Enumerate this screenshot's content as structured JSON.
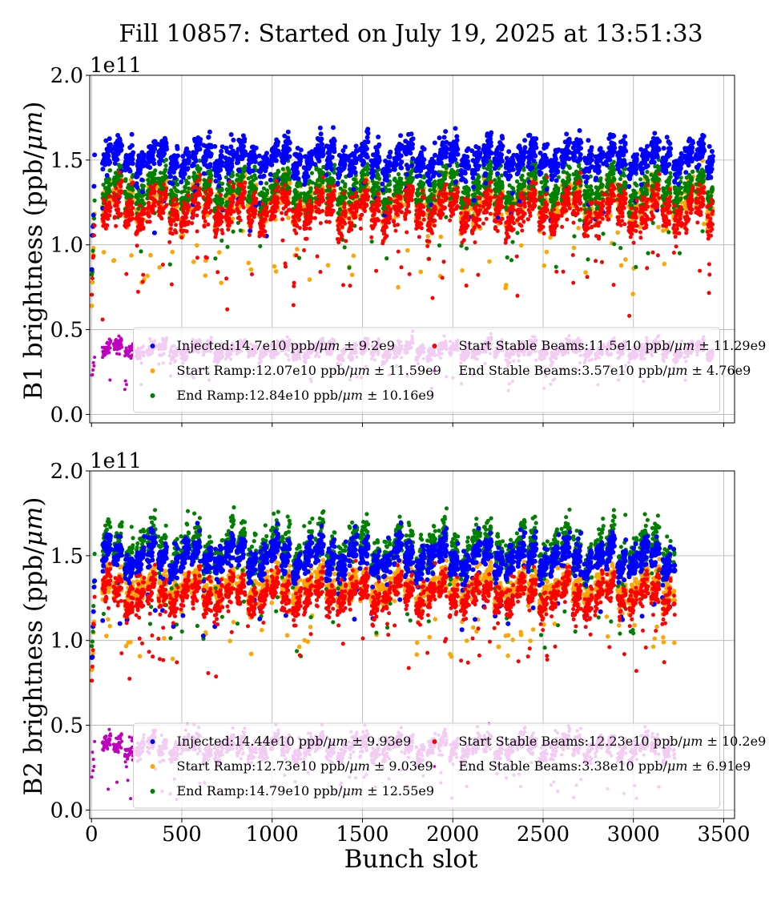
{
  "figure": {
    "title": "Fill 10857: Started on July 19, 2025 at 13:51:33",
    "xlabel": "Bunch slot"
  },
  "colors": {
    "injected": "#0000ff",
    "start_ramp": "#ffa500",
    "end_ramp": "#008000",
    "start_stable": "#ff0000",
    "end_stable": "#bf00bf"
  },
  "chart_data": [
    {
      "type": "scatter",
      "panel": "B1",
      "ylabel": "B1 brightness (ppb/μm)",
      "y_offset_text": "1e11",
      "xlim": [
        -10,
        3560
      ],
      "ylim": [
        -0.05,
        2.0
      ],
      "x_ticks": [
        0,
        500,
        1000,
        1500,
        2000,
        2500,
        3000,
        3500
      ],
      "y_ticks": [
        0.0,
        0.5,
        1.0,
        1.5,
        2.0
      ],
      "y_tick_labels": [
        "0.0",
        "0.5",
        "1.0",
        "1.5",
        "2.0"
      ],
      "grid": true,
      "legend_position": "lower center",
      "x_range": [
        0,
        3440
      ],
      "series": [
        {
          "name": "Injected:14.7e10 ppb/μm ± 9.2e9",
          "key": "injected",
          "mean": 1.47,
          "std": 0.092
        },
        {
          "name": "Start Ramp:12.07e10 ppb/μm ± 11.59e9",
          "key": "start_ramp",
          "mean": 1.207,
          "std": 0.1159
        },
        {
          "name": "End Ramp:12.84e10 ppb/μm ± 10.16e9",
          "key": "end_ramp",
          "mean": 1.284,
          "std": 0.1016
        },
        {
          "name": "Start Stable Beams:11.5e10 ppb/μm ± 11.29e9",
          "key": "start_stable",
          "mean": 1.15,
          "std": 0.1129
        },
        {
          "name": "End Stable Beams:3.57e10 ppb/μm ± 4.76e9",
          "key": "end_stable",
          "mean": 0.357,
          "std": 0.0476
        }
      ]
    },
    {
      "type": "scatter",
      "panel": "B2",
      "ylabel": "B2 brightness (ppb/μm)",
      "y_offset_text": "1e11",
      "xlim": [
        -10,
        3560
      ],
      "ylim": [
        -0.05,
        2.0
      ],
      "x_ticks": [
        0,
        500,
        1000,
        1500,
        2000,
        2500,
        3000,
        3500
      ],
      "x_tick_labels": [
        "0",
        "500",
        "1000",
        "1500",
        "2000",
        "2500",
        "3000",
        "3500"
      ],
      "y_ticks": [
        0.0,
        0.5,
        1.0,
        1.5,
        2.0
      ],
      "y_tick_labels": [
        "0.0",
        "0.5",
        "1.0",
        "1.5",
        "2.0"
      ],
      "grid": true,
      "legend_position": "lower center",
      "x_range": [
        0,
        3230
      ],
      "series": [
        {
          "name": "Injected:14.44e10 ppb/μm ± 9.93e9",
          "key": "injected",
          "mean": 1.444,
          "std": 0.0993
        },
        {
          "name": "Start Ramp:12.73e10 ppb/μm ± 9.03e9",
          "key": "start_ramp",
          "mean": 1.273,
          "std": 0.0903
        },
        {
          "name": "End Ramp:14.79e10 ppb/μm ± 12.55e9",
          "key": "end_ramp",
          "mean": 1.479,
          "std": 0.1255
        },
        {
          "name": "Start Stable Beams:12.23e10 ppb/μm ± 10.2e9",
          "key": "start_stable",
          "mean": 1.223,
          "std": 0.102
        },
        {
          "name": "End Stable Beams:3.38e10 ppb/μm ± 6.91e9",
          "key": "end_stable",
          "mean": 0.338,
          "std": 0.0691
        }
      ]
    }
  ]
}
